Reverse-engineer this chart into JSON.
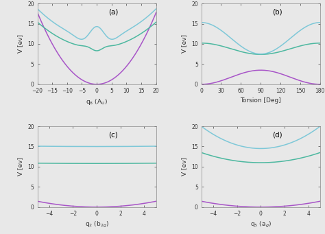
{
  "colors": {
    "purple": "#a855c8",
    "teal": "#4db8a0",
    "cyan": "#7ec8d8"
  },
  "bg_color": "#e8e8e8",
  "subplot_a": {
    "label": "(a)",
    "xlabel": "q$_8$ (A$_\\mathrm{U}$)",
    "ylabel": "V [ev]",
    "xlim": [
      -20,
      20
    ],
    "ylim": [
      0,
      20
    ],
    "xticks": [
      -20,
      -15,
      -10,
      -5,
      0,
      5,
      10,
      15,
      20
    ],
    "yticks": [
      0,
      5,
      10,
      15,
      20
    ]
  },
  "subplot_b": {
    "label": "(b)",
    "xlabel": "Torsion [Deg]",
    "ylabel": "V [ev]",
    "xlim": [
      0,
      180
    ],
    "ylim": [
      0,
      20
    ],
    "xticks": [
      0,
      30,
      60,
      90,
      120,
      150,
      180
    ],
    "yticks": [
      0,
      5,
      10,
      15,
      20
    ]
  },
  "subplot_c": {
    "label": "(c)",
    "xlabel": "q$_2$ (b$_{2g}$)",
    "ylabel": "V [ev]",
    "xlim": [
      -5,
      5
    ],
    "ylim": [
      0,
      20
    ],
    "xticks": [
      -4,
      -2,
      0,
      2,
      4
    ],
    "yticks": [
      0,
      5,
      10,
      15,
      20
    ]
  },
  "subplot_d": {
    "label": "(d)",
    "xlabel": "q$_5$ (a$_g$)",
    "ylabel": "V [ev]",
    "xlim": [
      -5,
      5
    ],
    "ylim": [
      0,
      20
    ],
    "xticks": [
      -4,
      -2,
      0,
      2,
      4
    ],
    "yticks": [
      0,
      5,
      10,
      15,
      20
    ]
  }
}
